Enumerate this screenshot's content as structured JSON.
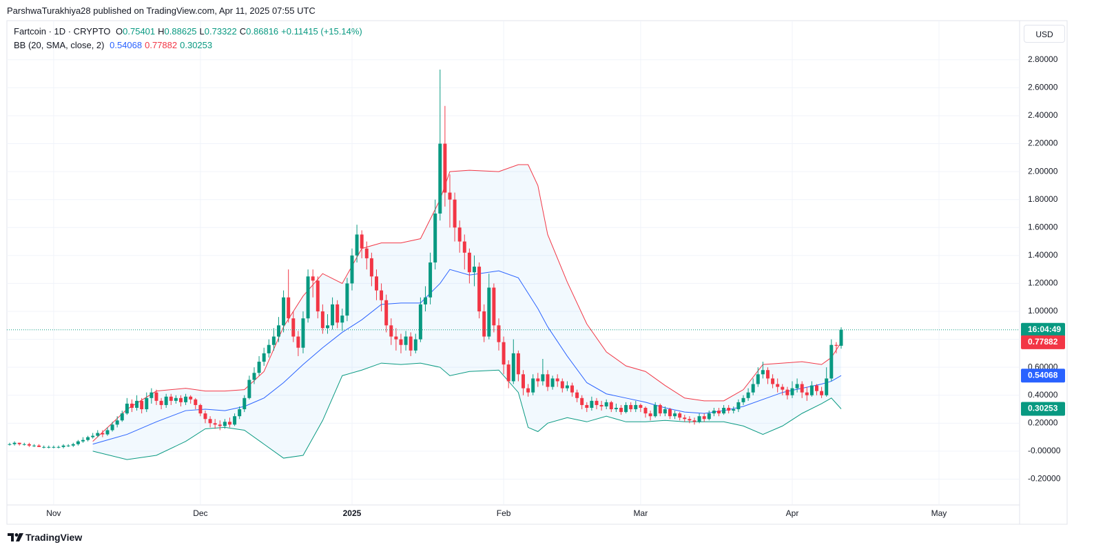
{
  "header": {
    "attribution": "ParshwaTurakhiya28 published on TradingView.com, Apr 11, 2025 07:55 UTC"
  },
  "branding": "TradingView",
  "chart_data": {
    "type": "candlestick",
    "symbol": "Fartcoin · 1D · CRYPTO",
    "ohlc_keys": [
      "O",
      "H",
      "L",
      "C"
    ],
    "change": "+0.11415 (+15.14%)",
    "indicator": "BB (20, SMA, close, 2)",
    "currency": "USD",
    "countdown": "16:04:49",
    "up_color": "#089981",
    "down_color": "#f23645",
    "grid": true,
    "xlim": [
      -0.56,
      206.48
    ],
    "xticks": [
      {
        "value": 9,
        "label": "Nov"
      },
      {
        "value": 39,
        "label": "Dec"
      },
      {
        "value": 70,
        "label": "2025",
        "bold": true
      },
      {
        "value": 101,
        "label": "Feb"
      },
      {
        "value": 129,
        "label": "Mar"
      },
      {
        "value": 160,
        "label": "Apr"
      },
      {
        "value": 190,
        "label": "May"
      }
    ],
    "ylim": [
      -0.38,
      3.08
    ],
    "yticks": [
      {
        "value": -0.2,
        "label": "-0.20000"
      },
      {
        "value": 0,
        "label": "-0.00000"
      },
      {
        "value": 0.2,
        "label": "0.20000"
      },
      {
        "value": 0.4,
        "label": "0.40000"
      },
      {
        "value": 0.6,
        "label": "0.60000"
      },
      {
        "value": 0.8,
        "label": "0.80000"
      },
      {
        "value": 1,
        "label": "1.00000"
      },
      {
        "value": 1.2,
        "label": "1.20000"
      },
      {
        "value": 1.4,
        "label": "1.40000"
      },
      {
        "value": 1.6,
        "label": "1.60000"
      },
      {
        "value": 1.8,
        "label": "1.80000"
      },
      {
        "value": 2,
        "label": "2.00000"
      },
      {
        "value": 2.2,
        "label": "2.20000"
      },
      {
        "value": 2.4,
        "label": "2.40000"
      },
      {
        "value": 2.6,
        "label": "2.60000"
      },
      {
        "value": 2.8,
        "label": "2.80000"
      }
    ],
    "open": [
      0.05,
      0.05,
      0.06,
      0.05,
      0.05,
      0.04,
      0.04,
      0.03,
      0.03,
      0.03,
      0.03,
      0.03,
      0.04,
      0.04,
      0.05,
      0.07,
      0.08,
      0.1,
      0.11,
      0.13,
      0.12,
      0.15,
      0.19,
      0.22,
      0.27,
      0.34,
      0.31,
      0.36,
      0.3,
      0.38,
      0.42,
      0.36,
      0.33,
      0.39,
      0.36,
      0.38,
      0.35,
      0.39,
      0.37,
      0.33,
      0.27,
      0.23,
      0.2,
      0.19,
      0.18,
      0.21,
      0.19,
      0.25,
      0.3,
      0.38,
      0.51,
      0.56,
      0.64,
      0.7,
      0.76,
      0.82,
      0.9,
      1.1,
      0.95,
      0.82,
      0.74,
      0.95,
      1.25,
      1.22,
      1.0,
      0.88,
      0.9,
      1.05,
      0.92,
      0.97,
      1.2,
      1.4,
      1.55,
      1.45,
      1.38,
      1.25,
      1.15,
      1.08,
      0.9,
      0.82,
      0.8,
      0.76,
      0.82,
      0.72,
      0.8,
      1.05,
      1.1,
      1.35,
      1.7,
      2.2,
      1.85,
      1.8,
      1.6,
      1.5,
      1.42,
      1.28,
      1.32,
      1.0,
      0.82,
      1.17,
      0.9,
      0.78,
      0.62,
      0.5,
      0.7,
      0.55,
      0.45,
      0.42,
      0.52,
      0.5,
      0.55,
      0.46,
      0.52,
      0.5,
      0.45,
      0.47,
      0.42,
      0.38,
      0.33,
      0.31,
      0.36,
      0.33,
      0.32,
      0.35,
      0.3,
      0.31,
      0.28,
      0.33,
      0.3,
      0.33,
      0.31,
      0.27,
      0.25,
      0.33,
      0.27,
      0.3,
      0.25,
      0.27,
      0.24,
      0.23,
      0.22,
      0.21,
      0.25,
      0.23,
      0.27,
      0.29,
      0.27,
      0.31,
      0.29,
      0.3,
      0.35,
      0.38,
      0.42,
      0.48,
      0.55,
      0.58,
      0.52,
      0.48,
      0.46,
      0.44,
      0.4,
      0.45,
      0.48,
      0.42,
      0.4,
      0.47,
      0.43,
      0.4,
      0.52,
      0.76,
      0.75401
    ],
    "high": [
      0.06,
      0.07,
      0.06,
      0.06,
      0.06,
      0.05,
      0.05,
      0.04,
      0.04,
      0.04,
      0.04,
      0.05,
      0.05,
      0.06,
      0.08,
      0.1,
      0.11,
      0.13,
      0.15,
      0.15,
      0.17,
      0.21,
      0.25,
      0.29,
      0.38,
      0.37,
      0.4,
      0.38,
      0.42,
      0.45,
      0.44,
      0.38,
      0.41,
      0.41,
      0.4,
      0.4,
      0.41,
      0.4,
      0.38,
      0.34,
      0.29,
      0.25,
      0.23,
      0.22,
      0.23,
      0.24,
      0.27,
      0.32,
      0.4,
      0.54,
      0.6,
      0.68,
      0.74,
      0.8,
      0.88,
      0.96,
      1.15,
      1.3,
      1.0,
      0.86,
      1.0,
      1.3,
      1.3,
      1.25,
      1.05,
      0.98,
      1.1,
      1.08,
      1.02,
      1.24,
      1.45,
      1.62,
      1.58,
      1.5,
      1.42,
      1.3,
      1.2,
      1.12,
      0.95,
      0.88,
      0.84,
      0.86,
      0.85,
      0.84,
      1.1,
      1.18,
      1.42,
      1.8,
      2.73,
      2.47,
      1.98,
      1.85,
      1.65,
      1.55,
      1.45,
      1.4,
      1.35,
      1.05,
      1.27,
      1.2,
      0.95,
      0.82,
      0.65,
      0.8,
      0.72,
      0.58,
      0.48,
      0.55,
      0.56,
      0.66,
      0.58,
      0.54,
      0.55,
      0.52,
      0.5,
      0.49,
      0.44,
      0.4,
      0.35,
      0.39,
      0.38,
      0.36,
      0.37,
      0.36,
      0.34,
      0.33,
      0.35,
      0.35,
      0.36,
      0.34,
      0.32,
      0.29,
      0.35,
      0.34,
      0.32,
      0.31,
      0.29,
      0.28,
      0.26,
      0.25,
      0.24,
      0.27,
      0.27,
      0.29,
      0.31,
      0.31,
      0.33,
      0.33,
      0.32,
      0.37,
      0.4,
      0.45,
      0.52,
      0.6,
      0.64,
      0.6,
      0.55,
      0.52,
      0.48,
      0.46,
      0.5,
      0.52,
      0.5,
      0.46,
      0.5,
      0.48,
      0.46,
      0.6,
      0.8,
      0.78,
      0.88625
    ],
    "low": [
      0.04,
      0.04,
      0.04,
      0.04,
      0.03,
      0.03,
      0.03,
      0.02,
      0.02,
      0.02,
      0.02,
      0.02,
      0.03,
      0.03,
      0.04,
      0.06,
      0.07,
      0.09,
      0.1,
      0.1,
      0.11,
      0.14,
      0.17,
      0.21,
      0.26,
      0.28,
      0.29,
      0.27,
      0.28,
      0.34,
      0.33,
      0.3,
      0.31,
      0.33,
      0.34,
      0.32,
      0.33,
      0.34,
      0.3,
      0.25,
      0.2,
      0.17,
      0.16,
      0.15,
      0.16,
      0.17,
      0.18,
      0.23,
      0.28,
      0.37,
      0.48,
      0.54,
      0.61,
      0.67,
      0.72,
      0.78,
      0.85,
      0.92,
      0.78,
      0.68,
      0.7,
      0.92,
      1.1,
      0.95,
      0.84,
      0.84,
      0.87,
      0.88,
      0.86,
      0.93,
      1.15,
      1.35,
      1.38,
      1.3,
      1.18,
      1.08,
      1.0,
      0.85,
      0.76,
      0.72,
      0.7,
      0.72,
      0.68,
      0.7,
      0.78,
      1.0,
      1.05,
      1.3,
      1.65,
      1.75,
      1.6,
      1.5,
      1.42,
      1.3,
      1.2,
      1.18,
      0.95,
      0.78,
      0.8,
      0.85,
      0.72,
      0.55,
      0.45,
      0.48,
      0.5,
      0.4,
      0.39,
      0.4,
      0.46,
      0.47,
      0.43,
      0.44,
      0.46,
      0.42,
      0.43,
      0.39,
      0.35,
      0.3,
      0.28,
      0.29,
      0.3,
      0.29,
      0.3,
      0.28,
      0.28,
      0.26,
      0.27,
      0.28,
      0.28,
      0.28,
      0.24,
      0.22,
      0.24,
      0.25,
      0.25,
      0.23,
      0.23,
      0.22,
      0.21,
      0.2,
      0.19,
      0.2,
      0.21,
      0.22,
      0.25,
      0.25,
      0.26,
      0.27,
      0.27,
      0.28,
      0.33,
      0.36,
      0.4,
      0.46,
      0.52,
      0.48,
      0.45,
      0.42,
      0.4,
      0.37,
      0.38,
      0.42,
      0.38,
      0.36,
      0.39,
      0.4,
      0.38,
      0.39,
      0.5,
      0.7,
      0.73322
    ],
    "close": [
      0.05,
      0.06,
      0.05,
      0.05,
      0.04,
      0.04,
      0.03,
      0.03,
      0.03,
      0.03,
      0.03,
      0.04,
      0.04,
      0.05,
      0.07,
      0.08,
      0.1,
      0.11,
      0.13,
      0.12,
      0.15,
      0.19,
      0.22,
      0.27,
      0.34,
      0.31,
      0.36,
      0.3,
      0.38,
      0.42,
      0.36,
      0.33,
      0.39,
      0.36,
      0.38,
      0.35,
      0.39,
      0.37,
      0.33,
      0.27,
      0.23,
      0.2,
      0.19,
      0.18,
      0.21,
      0.19,
      0.25,
      0.3,
      0.38,
      0.51,
      0.56,
      0.64,
      0.7,
      0.76,
      0.82,
      0.9,
      1.1,
      0.95,
      0.82,
      0.74,
      0.95,
      1.25,
      1.22,
      1.0,
      0.88,
      0.9,
      1.05,
      0.92,
      0.97,
      1.2,
      1.4,
      1.55,
      1.45,
      1.38,
      1.25,
      1.15,
      1.08,
      0.9,
      0.82,
      0.8,
      0.76,
      0.82,
      0.72,
      0.8,
      1.05,
      1.1,
      1.35,
      1.7,
      2.2,
      1.85,
      1.8,
      1.6,
      1.5,
      1.42,
      1.28,
      1.32,
      1.0,
      0.82,
      1.17,
      0.9,
      0.78,
      0.62,
      0.5,
      0.7,
      0.55,
      0.45,
      0.42,
      0.52,
      0.5,
      0.55,
      0.46,
      0.52,
      0.5,
      0.45,
      0.47,
      0.42,
      0.38,
      0.33,
      0.31,
      0.36,
      0.33,
      0.32,
      0.35,
      0.3,
      0.31,
      0.28,
      0.33,
      0.3,
      0.33,
      0.31,
      0.27,
      0.25,
      0.33,
      0.27,
      0.3,
      0.25,
      0.27,
      0.24,
      0.23,
      0.22,
      0.21,
      0.25,
      0.23,
      0.27,
      0.29,
      0.27,
      0.31,
      0.29,
      0.3,
      0.35,
      0.38,
      0.42,
      0.48,
      0.55,
      0.58,
      0.52,
      0.48,
      0.46,
      0.44,
      0.4,
      0.45,
      0.48,
      0.42,
      0.4,
      0.47,
      0.43,
      0.4,
      0.52,
      0.76,
      0.75401,
      0.86816
    ],
    "bands": {
      "fill": "#2196f3",
      "x": [
        17,
        24,
        30,
        36,
        40,
        44,
        48,
        52,
        56,
        60,
        64,
        68,
        72,
        76,
        80,
        84,
        88,
        90,
        94,
        100,
        104,
        106,
        108,
        110,
        114,
        118,
        122,
        126,
        130,
        134,
        138,
        142,
        146,
        150,
        154,
        158,
        162,
        166,
        168,
        170
      ],
      "series": [
        {
          "color": "#2962ff",
          "values": [
            0.05,
            0.12,
            0.21,
            0.29,
            0.3,
            0.29,
            0.32,
            0.38,
            0.49,
            0.62,
            0.74,
            0.85,
            0.94,
            1.05,
            1.06,
            1.06,
            1.2,
            1.3,
            1.26,
            1.29,
            1.24,
            1.13,
            1.02,
            0.89,
            0.68,
            0.49,
            0.41,
            0.38,
            0.35,
            0.31,
            0.28,
            0.27,
            0.29,
            0.32,
            0.37,
            0.42,
            0.45,
            0.48,
            0.5,
            0.54068
          ]
        },
        {
          "color": "#f23645",
          "values": [
            0.07,
            0.3,
            0.43,
            0.45,
            0.43,
            0.43,
            0.44,
            0.57,
            0.89,
            1.11,
            1.27,
            1.2,
            1.45,
            1.49,
            1.49,
            1.52,
            1.8,
            2.0,
            2.01,
            2.0,
            2.05,
            2.05,
            1.9,
            1.55,
            1.21,
            0.91,
            0.71,
            0.61,
            0.57,
            0.47,
            0.38,
            0.36,
            0.36,
            0.44,
            0.62,
            0.63,
            0.64,
            0.62,
            0.67,
            0.77882
          ]
        },
        {
          "color": "#089981",
          "values": [
            0.0,
            -0.06,
            -0.03,
            0.07,
            0.16,
            0.17,
            0.15,
            0.05,
            -0.05,
            -0.03,
            0.22,
            0.54,
            0.58,
            0.63,
            0.62,
            0.63,
            0.6,
            0.54,
            0.57,
            0.58,
            0.42,
            0.17,
            0.14,
            0.2,
            0.24,
            0.21,
            0.25,
            0.21,
            0.21,
            0.22,
            0.21,
            0.21,
            0.21,
            0.18,
            0.12,
            0.18,
            0.27,
            0.34,
            0.38,
            0.30253
          ]
        }
      ]
    }
  }
}
